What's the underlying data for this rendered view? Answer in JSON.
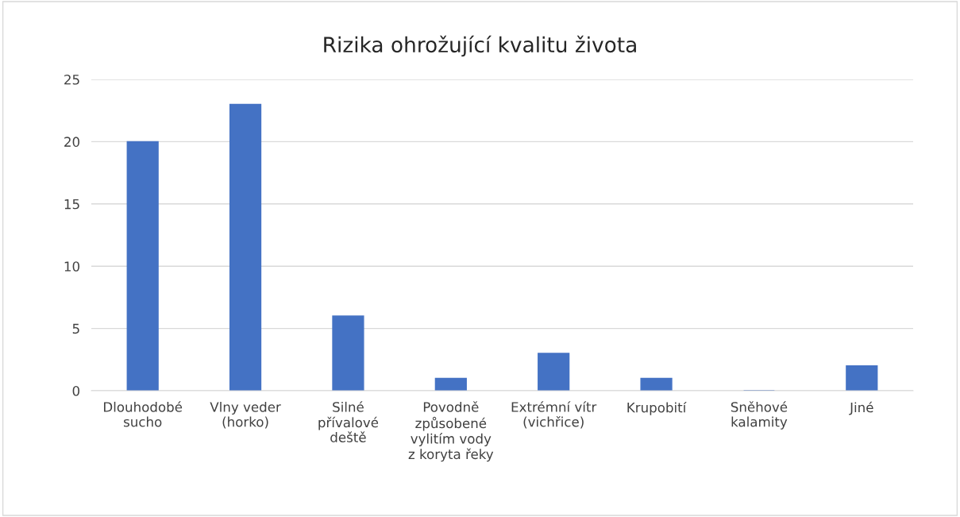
{
  "chart_data": {
    "type": "bar",
    "title": "Rizika ohrožující kvalitu života",
    "categories": [
      "Dlouhodobé\nsucho",
      "Vlny veder\n(horko)",
      "Silné\npřívalové\ndeště",
      "Povodně\nzpůsobené\nvylitím vody\nz koryta řeky",
      "Extrémní vítr\n(vichřice)",
      "Krupobití",
      "Sněhové\nkalamity",
      "Jiné"
    ],
    "values": [
      20,
      23,
      6,
      1,
      3,
      1,
      0,
      2
    ],
    "color": "#4472c4",
    "ylim": [
      0,
      25
    ],
    "yticks": [
      0,
      5,
      10,
      15,
      20,
      25
    ],
    "grid": "y",
    "legend": false
  }
}
